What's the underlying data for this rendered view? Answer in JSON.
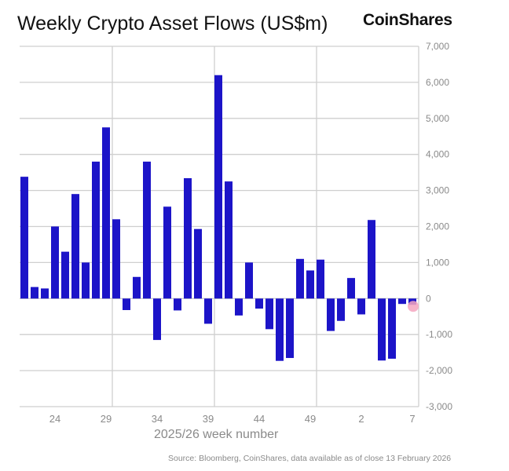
{
  "chart_data": {
    "type": "bar",
    "title": "Weekly Crypto Asset Flows (US$m)",
    "xlabel": "2025/26 week number",
    "ylabel": "",
    "ylim": [
      -3000,
      7000
    ],
    "yticks": [
      "7,000",
      "6,000",
      "5,000",
      "4,000",
      "3,000",
      "2,000",
      "1,000",
      "0",
      "-1,000",
      "-2,000",
      "-3,000"
    ],
    "ytick_values": [
      7000,
      6000,
      5000,
      4000,
      3000,
      2000,
      1000,
      0,
      -1000,
      -2000,
      -3000
    ],
    "y_axis_side": "right",
    "grid": true,
    "categories": [
      "21",
      "22",
      "23",
      "24",
      "25",
      "26",
      "27",
      "28",
      "29",
      "30",
      "31",
      "32",
      "33",
      "34",
      "35",
      "36",
      "37",
      "38",
      "39",
      "40",
      "41",
      "42",
      "43",
      "44",
      "45",
      "46",
      "47",
      "48",
      "49",
      "50",
      "51",
      "52",
      "1",
      "2",
      "3",
      "4",
      "5",
      "6",
      "7"
    ],
    "xtick_labels": [
      "24",
      "29",
      "34",
      "39",
      "44",
      "49",
      "2",
      "7"
    ],
    "values": [
      3380,
      320,
      280,
      2000,
      1300,
      2900,
      1000,
      3800,
      4750,
      2200,
      -320,
      600,
      3800,
      -1150,
      2550,
      -330,
      3340,
      1930,
      -700,
      6200,
      3250,
      -470,
      1000,
      -280,
      -850,
      -1730,
      -1650,
      1100,
      780,
      1080,
      -900,
      -620,
      570,
      -440,
      2180,
      -1720,
      -1670,
      -150,
      -173
    ],
    "bar_color": "#1c14c8",
    "highlight_color": "#f4a6c0"
  },
  "brand": {
    "logo": "CoinShares"
  },
  "source": "Source: Bloomberg, CoinShares, data available as of close 13 February 2026"
}
